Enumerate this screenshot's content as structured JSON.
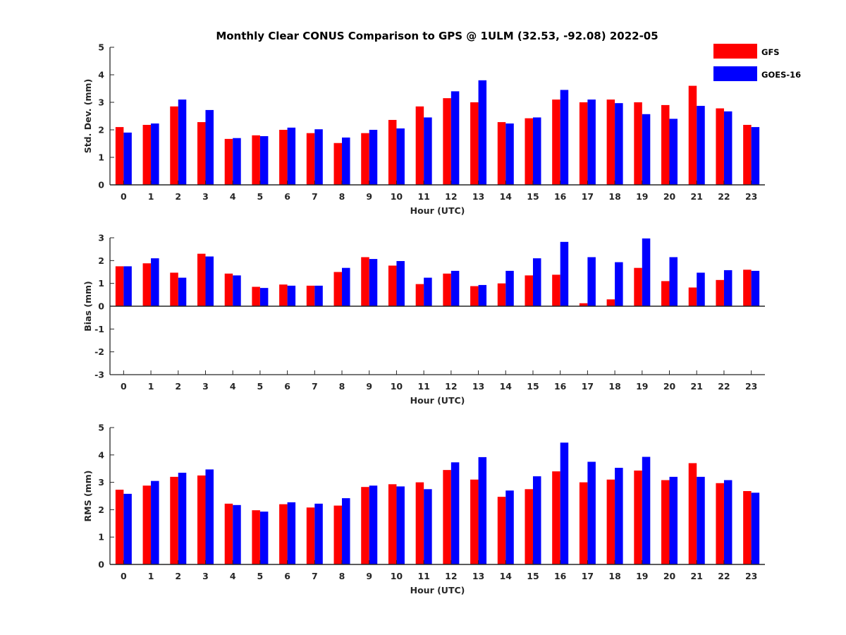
{
  "title": "Monthly Clear CONUS Comparison to GPS @ 1ULM (32.53, -92.08) 2022-05",
  "legend": [
    {
      "label": "GFS",
      "color": "#ff0000"
    },
    {
      "label": "GOES-16",
      "color": "#0000ff"
    }
  ],
  "chart_data": [
    {
      "type": "bar",
      "ylabel": "Std. Dev. (mm)",
      "xlabel": "Hour (UTC)",
      "ylim": [
        0,
        5
      ],
      "yticks": [
        "0",
        "1",
        "2",
        "3",
        "4",
        "5"
      ],
      "categories": [
        "0",
        "1",
        "2",
        "3",
        "4",
        "5",
        "6",
        "7",
        "8",
        "9",
        "10",
        "11",
        "12",
        "13",
        "14",
        "15",
        "16",
        "17",
        "18",
        "19",
        "20",
        "21",
        "22",
        "23"
      ],
      "series": [
        {
          "name": "GFS",
          "color": "#ff0000",
          "values": [
            2.1,
            2.18,
            2.85,
            2.28,
            1.67,
            1.8,
            2.0,
            1.88,
            1.52,
            1.88,
            2.36,
            2.85,
            3.15,
            3.0,
            2.28,
            2.42,
            3.1,
            3.0,
            3.1,
            3.0,
            2.9,
            3.6,
            2.78,
            2.18
          ]
        },
        {
          "name": "GOES-16",
          "color": "#0000ff",
          "values": [
            1.9,
            2.23,
            3.1,
            2.72,
            1.7,
            1.77,
            2.08,
            2.02,
            1.72,
            2.0,
            2.05,
            2.45,
            3.4,
            3.8,
            2.23,
            2.45,
            3.45,
            3.1,
            2.97,
            2.57,
            2.4,
            2.87,
            2.67,
            2.1
          ]
        }
      ]
    },
    {
      "type": "bar",
      "ylabel": "Bias (mm)",
      "xlabel": "Hour (UTC)",
      "ylim": [
        -3,
        3
      ],
      "yticks": [
        "-3",
        "-2",
        "-1",
        "0",
        "1",
        "2",
        "3"
      ],
      "categories": [
        "0",
        "1",
        "2",
        "3",
        "4",
        "5",
        "6",
        "7",
        "8",
        "9",
        "10",
        "11",
        "12",
        "13",
        "14",
        "15",
        "16",
        "17",
        "18",
        "19",
        "20",
        "21",
        "22",
        "23"
      ],
      "series": [
        {
          "name": "GFS",
          "color": "#ff0000",
          "values": [
            1.75,
            1.88,
            1.47,
            2.3,
            1.43,
            0.85,
            0.95,
            0.9,
            1.5,
            2.15,
            1.78,
            0.97,
            1.43,
            0.88,
            1.0,
            1.35,
            1.38,
            0.13,
            0.3,
            1.68,
            1.1,
            0.82,
            1.15,
            1.6
          ]
        },
        {
          "name": "GOES-16",
          "color": "#0000ff",
          "values": [
            1.75,
            2.1,
            1.25,
            2.18,
            1.35,
            0.8,
            0.9,
            0.9,
            1.68,
            2.07,
            1.98,
            1.25,
            1.55,
            0.93,
            1.55,
            2.1,
            2.82,
            2.15,
            1.93,
            2.97,
            2.15,
            1.47,
            1.58,
            1.55
          ]
        }
      ]
    },
    {
      "type": "bar",
      "ylabel": "RMS (mm)",
      "xlabel": "Hour (UTC)",
      "ylim": [
        0,
        5
      ],
      "yticks": [
        "0",
        "1",
        "2",
        "3",
        "4",
        "5"
      ],
      "categories": [
        "0",
        "1",
        "2",
        "3",
        "4",
        "5",
        "6",
        "7",
        "8",
        "9",
        "10",
        "11",
        "12",
        "13",
        "14",
        "15",
        "16",
        "17",
        "18",
        "19",
        "20",
        "21",
        "22",
        "23"
      ],
      "series": [
        {
          "name": "GFS",
          "color": "#ff0000",
          "values": [
            2.73,
            2.88,
            3.2,
            3.25,
            2.22,
            1.98,
            2.2,
            2.08,
            2.15,
            2.83,
            2.93,
            3.0,
            3.45,
            3.1,
            2.47,
            2.75,
            3.4,
            3.0,
            3.1,
            3.43,
            3.08,
            3.7,
            2.97,
            2.68
          ]
        },
        {
          "name": "GOES-16",
          "color": "#0000ff",
          "values": [
            2.58,
            3.05,
            3.35,
            3.47,
            2.17,
            1.93,
            2.27,
            2.22,
            2.42,
            2.88,
            2.85,
            2.75,
            3.73,
            3.92,
            2.7,
            3.22,
            4.45,
            3.75,
            3.53,
            3.93,
            3.2,
            3.2,
            3.08,
            2.62
          ]
        }
      ]
    }
  ]
}
